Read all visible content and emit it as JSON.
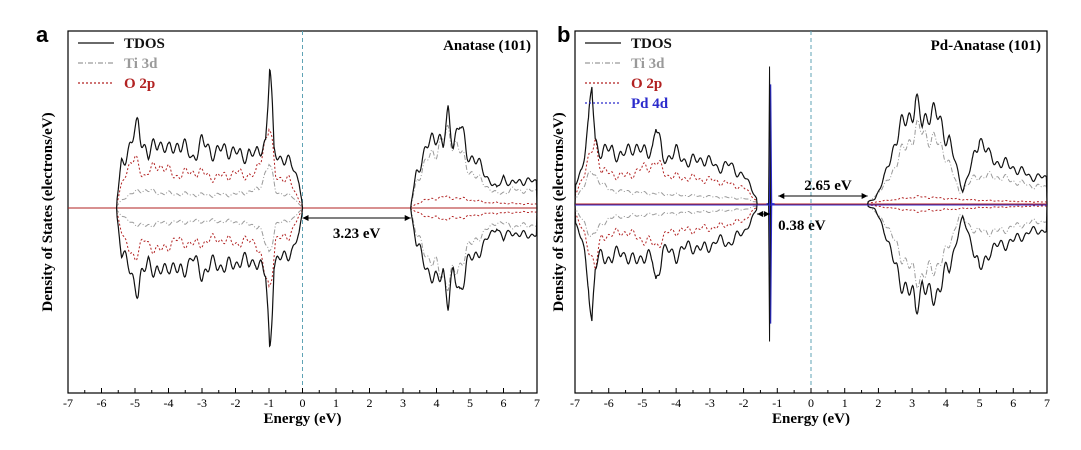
{
  "colors": {
    "tdos": "#111111",
    "ti3d": "#9a9a9a",
    "o2p": "#b22222",
    "pd4d": "#2b2bcc",
    "fermi": "#5fa3b5"
  },
  "chart_data": [
    {
      "panel": "a",
      "type": "line",
      "title": "Anatase (101)",
      "xlabel": "Energy (eV)",
      "ylabel": "Density of States (electrons/eV)",
      "xlim": [
        -7,
        7
      ],
      "xticks": [
        "-7",
        "-6",
        "-5",
        "-4",
        "-3",
        "-2",
        "-1",
        "0",
        "1",
        "2",
        "3",
        "4",
        "5",
        "6",
        "7"
      ],
      "fermi_level": 0,
      "legend": {
        "placement": "top-left",
        "entries": [
          {
            "series": "tdos",
            "name": "TDOS"
          },
          {
            "series": "ti3d",
            "name": "Ti 3d"
          },
          {
            "series": "o2p",
            "name": "O 2p"
          }
        ]
      },
      "series": [
        {
          "key": "tdos",
          "style": "solid",
          "profile": [
            [
              -5.55,
              0.05
            ],
            [
              -5.4,
              0.5
            ],
            [
              -5.1,
              0.7
            ],
            [
              -4.9,
              0.9
            ],
            [
              -4.6,
              0.55
            ],
            [
              -4.3,
              0.75
            ],
            [
              -4.0,
              0.6
            ],
            [
              -3.7,
              0.72
            ],
            [
              -3.3,
              0.55
            ],
            [
              -3.0,
              0.7
            ],
            [
              -2.6,
              0.6
            ],
            [
              -2.2,
              0.65
            ],
            [
              -1.8,
              0.55
            ],
            [
              -1.6,
              0.62
            ],
            [
              -1.4,
              0.55
            ],
            [
              -1.1,
              0.75
            ],
            [
              -0.98,
              1.55
            ],
            [
              -0.85,
              0.6
            ],
            [
              -0.6,
              0.55
            ],
            [
              -0.3,
              0.45
            ],
            [
              -0.1,
              0.3
            ],
            [
              0,
              0.03
            ]
          ]
        },
        {
          "key": "ti3d",
          "style": "dashdot",
          "profile": [
            [
              -5.55,
              0.02
            ],
            [
              -5.3,
              0.12
            ],
            [
              -4.8,
              0.2
            ],
            [
              -4.2,
              0.16
            ],
            [
              -3.5,
              0.15
            ],
            [
              -2.8,
              0.14
            ],
            [
              -2.0,
              0.15
            ],
            [
              -1.3,
              0.2
            ],
            [
              -1.0,
              0.5
            ],
            [
              -0.8,
              0.18
            ],
            [
              -0.3,
              0.12
            ],
            [
              0,
              0.01
            ]
          ]
        },
        {
          "key": "o2p",
          "style": "dotted",
          "profile": [
            [
              -5.55,
              0.03
            ],
            [
              -5.3,
              0.4
            ],
            [
              -5.0,
              0.52
            ],
            [
              -4.7,
              0.35
            ],
            [
              -4.3,
              0.48
            ],
            [
              -3.8,
              0.35
            ],
            [
              -3.2,
              0.4
            ],
            [
              -2.6,
              0.33
            ],
            [
              -2.0,
              0.38
            ],
            [
              -1.4,
              0.35
            ],
            [
              -1.0,
              0.9
            ],
            [
              -0.8,
              0.35
            ],
            [
              -0.4,
              0.3
            ],
            [
              0,
              0.02
            ]
          ]
        }
      ],
      "conduction": {
        "tdos": [
          [
            3.23,
            0.02
          ],
          [
            3.4,
            0.4
          ],
          [
            3.6,
            0.55
          ],
          [
            3.8,
            0.7
          ],
          [
            4.0,
            0.85
          ],
          [
            4.2,
            0.65
          ],
          [
            4.35,
            1.0
          ],
          [
            4.5,
            0.75
          ],
          [
            4.7,
            0.9
          ],
          [
            4.9,
            0.6
          ],
          [
            5.1,
            0.55
          ],
          [
            5.4,
            0.4
          ],
          [
            5.8,
            0.2
          ],
          [
            6.0,
            0.35
          ],
          [
            6.2,
            0.25
          ],
          [
            6.5,
            0.3
          ],
          [
            7.0,
            0.28
          ]
        ],
        "ti3d": [
          [
            3.23,
            0.01
          ],
          [
            3.4,
            0.3
          ],
          [
            3.7,
            0.5
          ],
          [
            4.0,
            0.65
          ],
          [
            4.35,
            0.8
          ],
          [
            4.6,
            0.7
          ],
          [
            4.9,
            0.45
          ],
          [
            5.3,
            0.3
          ],
          [
            5.8,
            0.15
          ],
          [
            6.3,
            0.2
          ],
          [
            7.0,
            0.18
          ]
        ],
        "o2p": [
          [
            3.23,
            0.01
          ],
          [
            3.6,
            0.08
          ],
          [
            4.2,
            0.12
          ],
          [
            4.8,
            0.1
          ],
          [
            5.5,
            0.06
          ],
          [
            6.2,
            0.05
          ],
          [
            7.0,
            0.04
          ]
        ]
      },
      "band_gap": {
        "label": "3.23 eV",
        "x1": 0.0,
        "x2": 3.23
      }
    },
    {
      "panel": "b",
      "type": "line",
      "title": "Pd-Anatase (101)",
      "xlabel": "Energy (eV)",
      "ylabel": "Density of States (electrons/eV)",
      "xlim": [
        -7,
        7
      ],
      "xticks": [
        "-7",
        "-6",
        "-5",
        "-4",
        "-3",
        "-2",
        "-1",
        "0",
        "1",
        "2",
        "3",
        "4",
        "5",
        "6",
        "7"
      ],
      "fermi_level": 0,
      "legend": {
        "placement": "top-left",
        "entries": [
          {
            "series": "tdos",
            "name": "TDOS"
          },
          {
            "series": "ti3d",
            "name": "Ti 3d"
          },
          {
            "series": "o2p",
            "name": "O 2p"
          },
          {
            "series": "pd4d",
            "name": "Pd 4d"
          }
        ]
      },
      "series": [
        {
          "key": "tdos",
          "style": "solid",
          "profile": [
            [
              -7.0,
              0.2
            ],
            [
              -6.8,
              0.4
            ],
            [
              -6.6,
              0.8
            ],
            [
              -6.5,
              1.3
            ],
            [
              -6.4,
              0.7
            ],
            [
              -6.2,
              0.55
            ],
            [
              -5.9,
              0.6
            ],
            [
              -5.6,
              0.5
            ],
            [
              -5.3,
              0.65
            ],
            [
              -5.0,
              0.55
            ],
            [
              -4.7,
              0.62
            ],
            [
              -4.6,
              0.85
            ],
            [
              -4.4,
              0.5
            ],
            [
              -4.0,
              0.55
            ],
            [
              -3.6,
              0.45
            ],
            [
              -3.2,
              0.5
            ],
            [
              -2.8,
              0.4
            ],
            [
              -2.4,
              0.42
            ],
            [
              -2.0,
              0.3
            ],
            [
              -1.8,
              0.2
            ],
            [
              -1.6,
              0.05
            ]
          ]
        },
        {
          "key": "ti3d",
          "style": "dashdot",
          "profile": [
            [
              -7.0,
              0.05
            ],
            [
              -6.5,
              0.35
            ],
            [
              -6.0,
              0.15
            ],
            [
              -5.0,
              0.12
            ],
            [
              -4.0,
              0.1
            ],
            [
              -3.0,
              0.08
            ],
            [
              -2.0,
              0.06
            ],
            [
              -1.6,
              0.02
            ]
          ]
        },
        {
          "key": "o2p",
          "style": "dotted",
          "profile": [
            [
              -7.0,
              0.1
            ],
            [
              -6.6,
              0.45
            ],
            [
              -6.4,
              0.7
            ],
            [
              -6.2,
              0.35
            ],
            [
              -5.5,
              0.3
            ],
            [
              -4.6,
              0.45
            ],
            [
              -4.2,
              0.3
            ],
            [
              -3.5,
              0.28
            ],
            [
              -2.8,
              0.25
            ],
            [
              -2.0,
              0.18
            ],
            [
              -1.6,
              0.03
            ]
          ]
        }
      ],
      "conduction": {
        "tdos": [
          [
            1.68,
            0.02
          ],
          [
            1.9,
            0.06
          ],
          [
            2.2,
            0.3
          ],
          [
            2.5,
            0.7
          ],
          [
            2.8,
            0.9
          ],
          [
            3.1,
            1.1
          ],
          [
            3.3,
            0.85
          ],
          [
            3.5,
            1.05
          ],
          [
            3.8,
            0.9
          ],
          [
            4.1,
            0.7
          ],
          [
            4.3,
            0.4
          ],
          [
            4.5,
            0.15
          ],
          [
            4.8,
            0.45
          ],
          [
            5.0,
            0.75
          ],
          [
            5.3,
            0.5
          ],
          [
            5.6,
            0.45
          ],
          [
            6.0,
            0.4
          ],
          [
            6.5,
            0.3
          ],
          [
            7.0,
            0.28
          ]
        ],
        "ti3d": [
          [
            1.68,
            0.01
          ],
          [
            2.2,
            0.2
          ],
          [
            2.6,
            0.5
          ],
          [
            3.1,
            0.8
          ],
          [
            3.5,
            0.75
          ],
          [
            4.0,
            0.55
          ],
          [
            4.4,
            0.12
          ],
          [
            4.9,
            0.3
          ],
          [
            5.5,
            0.3
          ],
          [
            6.5,
            0.2
          ],
          [
            7.0,
            0.18
          ]
        ],
        "o2p": [
          [
            1.68,
            0.01
          ],
          [
            2.5,
            0.05
          ],
          [
            3.2,
            0.08
          ],
          [
            4.0,
            0.06
          ],
          [
            5.0,
            0.04
          ],
          [
            6.0,
            0.03
          ],
          [
            7.0,
            0.02
          ]
        ]
      },
      "pd_peak": {
        "x": -1.2,
        "height": 1.3
      },
      "band_gap": {
        "label": "2.65 eV",
        "x1": -0.97,
        "x2": 1.68
      },
      "mid_gap": {
        "label": "0.38 eV",
        "x1": -1.6,
        "x2": -1.22
      }
    }
  ]
}
